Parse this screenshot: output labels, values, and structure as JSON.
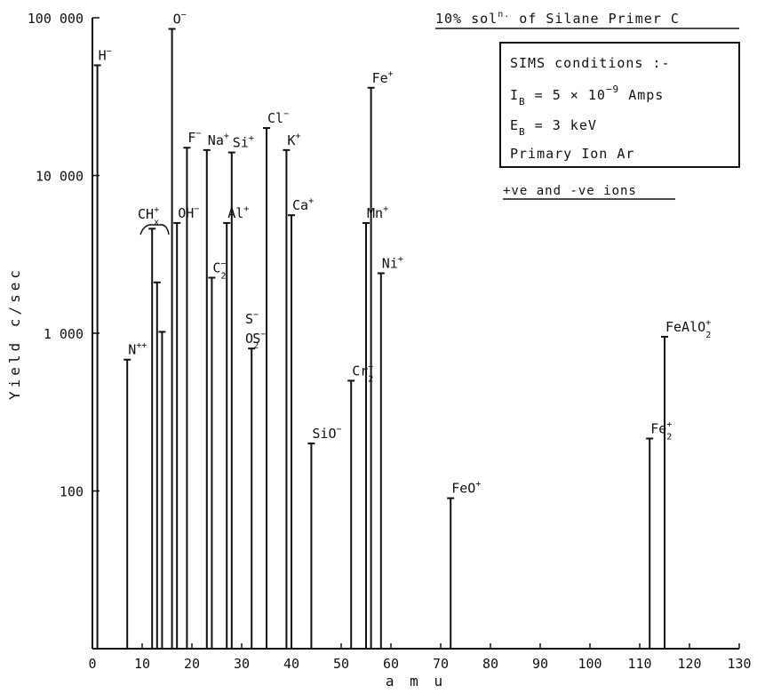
{
  "chart_data": {
    "type": "bar",
    "title": "10% soln. of Silane Primer C",
    "xlabel": "a m u",
    "ylabel": "Yield  c/sec",
    "xlim": [
      0,
      130
    ],
    "ylim": [
      10,
      100000
    ],
    "yscale": "log",
    "x_ticks": [
      "0",
      "10",
      "20",
      "30",
      "40",
      "50",
      "60",
      "70",
      "80",
      "90",
      "100",
      "110",
      "120",
      "130"
    ],
    "y_ticks": [
      {
        "value": 100,
        "label": "100"
      },
      {
        "value": 1000,
        "label": "1 000"
      },
      {
        "value": 10000,
        "label": "10 000"
      },
      {
        "value": 100000,
        "label": "100 000"
      }
    ],
    "grid": false,
    "legend": "none",
    "peaks": [
      {
        "amu": 1,
        "yield": 50000,
        "label": "H",
        "sup": "−"
      },
      {
        "amu": 7,
        "yield": 680,
        "label": "N",
        "sup": "++"
      },
      {
        "amu": 12,
        "yield": 4600,
        "label": ""
      },
      {
        "amu": 13,
        "yield": 2100,
        "label": ""
      },
      {
        "amu": 14,
        "yield": 1020,
        "label": ""
      },
      {
        "amu": 16,
        "yield": 85000,
        "label": "O",
        "sup": "−"
      },
      {
        "amu": 17,
        "yield": 5000,
        "label": "OH",
        "sup": "−"
      },
      {
        "amu": 19,
        "yield": 15000,
        "label": "F",
        "sup": "−"
      },
      {
        "amu": 23,
        "yield": 14500,
        "label": "Na",
        "sup": "+"
      },
      {
        "amu": 24,
        "yield": 2250,
        "label": "C",
        "sup": "−",
        "sub": "2"
      },
      {
        "amu": 27,
        "yield": 5000,
        "label": "Al",
        "sup": "+"
      },
      {
        "amu": 28,
        "yield": 14000,
        "label": "Si",
        "sup": "+"
      },
      {
        "amu": 32,
        "yield": 800,
        "label": "S",
        "sup": "−"
      },
      {
        "amu": 35,
        "yield": 20000,
        "label": "Cl",
        "sup": "−"
      },
      {
        "amu": 39,
        "yield": 14500,
        "label": "K",
        "sup": "+"
      },
      {
        "amu": 40,
        "yield": 5600,
        "label": "Ca",
        "sup": "+"
      },
      {
        "amu": 44,
        "yield": 200,
        "label": "SiO",
        "sup": "−"
      },
      {
        "amu": 52,
        "yield": 500,
        "label": "Cr",
        "sup": "+",
        "sub": "2"
      },
      {
        "amu": 55,
        "yield": 5000,
        "label": "Mn",
        "sup": "+"
      },
      {
        "amu": 56,
        "yield": 36000,
        "label": "Fe",
        "sup": "+"
      },
      {
        "amu": 58,
        "yield": 2400,
        "label": "Ni",
        "sup": "+"
      },
      {
        "amu": 72,
        "yield": 90,
        "label": "FeO",
        "sup": "+"
      },
      {
        "amu": 112,
        "yield": 215,
        "label": "Fe",
        "sup": "+",
        "sub": "2"
      },
      {
        "amu": 115,
        "yield": 950,
        "label": "FeAlO",
        "sup": "+",
        "sub": "2"
      }
    ],
    "annotations": {
      "s_o2_label": {
        "line1": "S",
        "line1_sup": "−",
        "line2": "O",
        "line2_sup": "−",
        "line2_sub": "2"
      },
      "chx_label": {
        "text": "CH",
        "sup": "+",
        "sub": "x"
      }
    }
  },
  "conditions_box": {
    "title": "SIMS conditions :-",
    "ib_prefix": "I",
    "ib_sub": "B",
    "ib_text": " = 5 × 10",
    "ib_exp": "−9",
    "ib_unit": " Amps",
    "eb_prefix": "E",
    "eb_sub": "B",
    "eb_text": " = 3 keV",
    "ion": "Primary Ion Ar"
  },
  "ion_note": "+ve and -ve ions",
  "title_parts": {
    "pre": "10% sol",
    "sup": "n.",
    "post": " of Silane Primer C"
  }
}
